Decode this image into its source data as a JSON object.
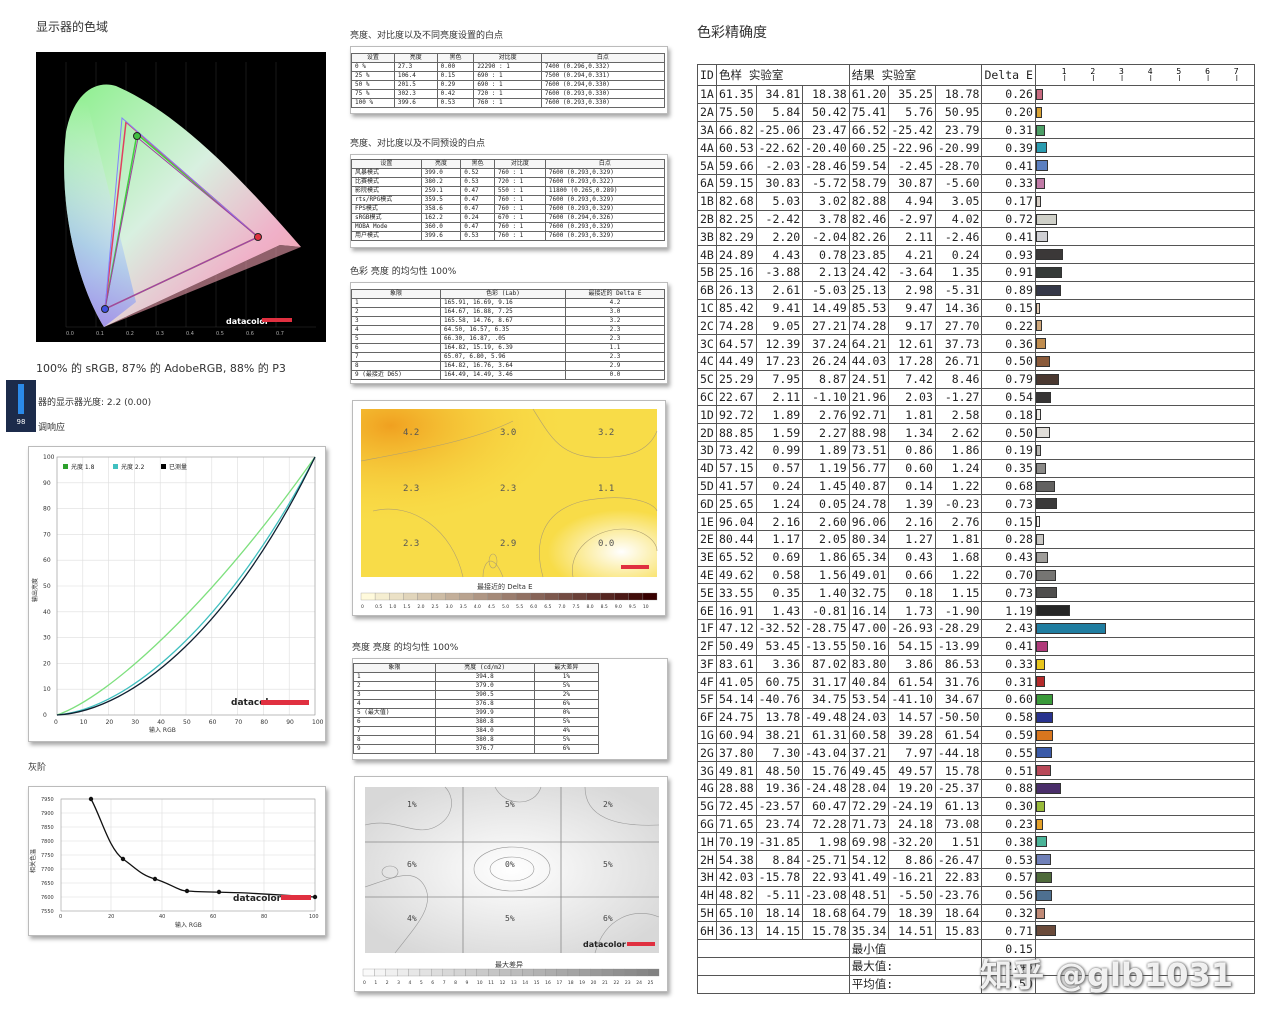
{
  "gamut": {
    "title": "显示器的色域",
    "caption": "100% 的 sRGB, 87% 的 AdobeRGB, 88% 的 P3",
    "logo": "datacolor"
  },
  "badge": {
    "value": "98"
  },
  "gamma_title": "显示器的显示器光度: 2.2 (0.00)",
  "gamma_title_visible": "器的显示器光度: 2.2 (0.00)",
  "response_title": "调响应",
  "gamma_chart": {
    "legend": [
      "光度 1.8",
      "光度 2.2",
      "已测量"
    ],
    "legend_colors": [
      "#2ca02c",
      "#40c0c0",
      "#000000"
    ],
    "xlabel": "输入 RGB",
    "ylabel": "输出亮度",
    "ticks": [
      "0",
      "10",
      "20",
      "30",
      "40",
      "50",
      "60",
      "70",
      "80",
      "90",
      "100"
    ],
    "logo": "datacolor"
  },
  "gray_title": "灰阶",
  "gray_chart": {
    "xlabel": "输入 RGB",
    "ylabel": "相关色温",
    "yticks": [
      "7950",
      "7900",
      "7850",
      "7800",
      "7750",
      "7700",
      "7650",
      "7600",
      "7550"
    ],
    "xticks": [
      "0",
      "20",
      "40",
      "60",
      "80",
      "100"
    ],
    "logo": "datacolor"
  },
  "table1": {
    "title": "亮度、对比度以及不同亮度设置的白点",
    "headers": [
      "设置",
      "亮度",
      "黑色",
      "对比度",
      "白点"
    ],
    "rows": [
      [
        "0 %",
        "27.3",
        "0.00",
        "22290 : 1",
        "7400 (0.296,0.332)"
      ],
      [
        "25 %",
        "106.4",
        "0.15",
        "690 : 1",
        "7500 (0.294,0.331)"
      ],
      [
        "50 %",
        "201.5",
        "0.29",
        "690 : 1",
        "7600 (0.294,0.330)"
      ],
      [
        "75 %",
        "302.3",
        "0.42",
        "720 : 1",
        "7600 (0.293,0.330)"
      ],
      [
        "100 %",
        "399.6",
        "0.53",
        "760 : 1",
        "7600 (0.293,0.330)"
      ]
    ]
  },
  "table2": {
    "title": "亮度、对比度以及不同预设的白点",
    "headers": [
      "设置",
      "亮度",
      "黑色",
      "对比度",
      "白点"
    ],
    "rows": [
      [
        "风暴模式",
        "399.0",
        "0.52",
        "760 : 1",
        "7600 (0.293,0.329)"
      ],
      [
        "比赛模式",
        "380.2",
        "0.53",
        "720 : 1",
        "7600 (0.293,0.322)"
      ],
      [
        "影院模式",
        "259.1",
        "0.47",
        "550 : 1",
        "11800 (0.265,0.289)"
      ],
      [
        "rts/RPG模式",
        "359.5",
        "0.47",
        "760 : 1",
        "7600 (0.293,0.329)"
      ],
      [
        "FPS模式",
        "358.6",
        "0.47",
        "760 : 1",
        "7600 (0.293,0.329)"
      ],
      [
        "sRGB模式",
        "162.2",
        "0.24",
        "670 : 1",
        "7600 (0.294,0.326)"
      ],
      [
        "MOBA Mode",
        "360.0",
        "0.47",
        "760 : 1",
        "7600 (0.293,0.329)"
      ],
      [
        "用户模式",
        "399.6",
        "0.53",
        "760 : 1",
        "7600 (0.293,0.329)"
      ]
    ]
  },
  "table3": {
    "title": "色彩 亮度 的均匀性 100%",
    "headers": [
      "象限",
      "色彩 (Lab)",
      "最接近的 Delta E"
    ],
    "rows": [
      [
        "1",
        "165.91,  16.69,  9.16",
        "4.2"
      ],
      [
        "2",
        "164.67,  16.88,  7.25",
        "3.0"
      ],
      [
        "3",
        "165.58,  14.76,  8.67",
        "3.2"
      ],
      [
        "4",
        "64.50,  16.57,  6.35",
        "2.3"
      ],
      [
        "5",
        "66.30,  16.87,  .05",
        "2.3"
      ],
      [
        "6",
        "164.82,  15.19,  6.39",
        "1.1"
      ],
      [
        "7",
        "65.07,  6.80,  5.96",
        "2.3"
      ],
      [
        "8",
        "164.82,  16.76,  3.64",
        "2.9"
      ],
      [
        "9 (最接近 D65)",
        "164.49,  14.49,  3.46",
        "0.0"
      ]
    ]
  },
  "heatmap1": {
    "labels": [
      "4.2",
      "3.0",
      "3.2",
      "2.3",
      "2.3",
      "1.1",
      "2.3",
      "2.9",
      "0.0"
    ],
    "caption": "最接近的 Delta E",
    "scale": [
      "0",
      "0.5",
      "1.0",
      "1.5",
      "2.0",
      "2.5",
      "3.0",
      "3.5",
      "4.0",
      "4.5",
      "5.0",
      "5.5",
      "6.0",
      "6.5",
      "7.0",
      "7.5",
      "8.0",
      "8.5",
      "9.0",
      "9.5",
      "10"
    ]
  },
  "table4": {
    "title": "亮度 亮度 的均匀性 100%",
    "headers": [
      "象限",
      "亮度 (cd/m2)",
      "最大差异"
    ],
    "rows": [
      [
        "1",
        "394.8",
        "1%"
      ],
      [
        "2",
        "379.0",
        "5%"
      ],
      [
        "3",
        "390.5",
        "2%"
      ],
      [
        "4",
        "376.8",
        "6%"
      ],
      [
        "5 (最大值)",
        "399.9",
        "0%"
      ],
      [
        "6",
        "380.8",
        "5%"
      ],
      [
        "7",
        "384.0",
        "4%"
      ],
      [
        "8",
        "380.8",
        "5%"
      ],
      [
        "9",
        "376.7",
        "6%"
      ]
    ]
  },
  "heatmap2": {
    "labels": [
      "1%",
      "5%",
      "2%",
      "6%",
      "0%",
      "5%",
      "4%",
      "5%",
      "6%"
    ],
    "caption": "最大差异",
    "scale": [
      "0",
      "1",
      "2",
      "3",
      "4",
      "5",
      "6",
      "7",
      "8",
      "9",
      "10",
      "11",
      "12",
      "13",
      "14",
      "15",
      "16",
      "17",
      "18",
      "19",
      "20",
      "21",
      "22",
      "23",
      "24",
      "25"
    ],
    "logo": "datacolor"
  },
  "accuracy": {
    "title": "色彩精确度",
    "headers": [
      "ID",
      "色样 实验室",
      "结果 实验室",
      "Delta E"
    ],
    "axis": [
      "1",
      "2",
      "3",
      "4",
      "5",
      "6",
      "7"
    ],
    "rows": [
      [
        "1A",
        "61.35",
        "34.81",
        "18.38",
        "61.20",
        "35.25",
        "18.78",
        "0.26",
        "#c86a80"
      ],
      [
        "2A",
        "75.50",
        "5.84",
        "50.42",
        "75.41",
        "5.76",
        "50.95",
        "0.20",
        "#d9a233"
      ],
      [
        "3A",
        "66.82",
        "-25.06",
        "23.47",
        "66.52",
        "-25.42",
        "23.79",
        "0.31",
        "#4c9e66"
      ],
      [
        "4A",
        "60.53",
        "-22.62",
        "-20.40",
        "60.25",
        "-22.96",
        "-20.99",
        "0.39",
        "#2a9cb0"
      ],
      [
        "5A",
        "59.66",
        "-2.03",
        "-28.46",
        "59.54",
        "-2.45",
        "-28.70",
        "0.41",
        "#5b7fc0"
      ],
      [
        "6A",
        "59.15",
        "30.83",
        "-5.72",
        "58.79",
        "30.87",
        "-5.60",
        "0.33",
        "#c07aa6"
      ],
      [
        "1B",
        "82.68",
        "5.03",
        "3.02",
        "82.88",
        "4.94",
        "3.05",
        "0.17",
        "#d8cfc6"
      ],
      [
        "2B",
        "82.25",
        "-2.42",
        "3.78",
        "82.46",
        "-2.97",
        "4.02",
        "0.72",
        "#cfd0c8"
      ],
      [
        "3B",
        "82.29",
        "2.20",
        "-2.04",
        "82.26",
        "2.11",
        "-2.46",
        "0.41",
        "#d0d0d4"
      ],
      [
        "4B",
        "24.89",
        "4.43",
        "0.78",
        "23.85",
        "4.21",
        "0.24",
        "0.93",
        "#3b3838"
      ],
      [
        "5B",
        "25.16",
        "-3.88",
        "2.13",
        "24.42",
        "-3.64",
        "1.35",
        "0.91",
        "#353a38"
      ],
      [
        "6B",
        "26.13",
        "2.61",
        "-5.03",
        "25.13",
        "2.98",
        "-5.31",
        "0.89",
        "#353848"
      ],
      [
        "1C",
        "85.42",
        "9.41",
        "14.49",
        "85.53",
        "9.47",
        "14.36",
        "0.15",
        "#e6ccb4"
      ],
      [
        "2C",
        "74.28",
        "9.05",
        "27.21",
        "74.28",
        "9.17",
        "27.70",
        "0.22",
        "#cfa77a"
      ],
      [
        "3C",
        "64.57",
        "12.39",
        "37.24",
        "64.21",
        "12.61",
        "37.73",
        "0.36",
        "#c08d4f"
      ],
      [
        "4C",
        "44.49",
        "17.23",
        "26.24",
        "44.03",
        "17.28",
        "26.71",
        "0.50",
        "#8a5a3a"
      ],
      [
        "5C",
        "25.29",
        "7.95",
        "8.87",
        "24.51",
        "7.42",
        "8.46",
        "0.79",
        "#4a3830"
      ],
      [
        "6C",
        "22.67",
        "2.11",
        "-1.10",
        "21.96",
        "2.03",
        "-1.27",
        "0.54",
        "#363434"
      ],
      [
        "1D",
        "92.72",
        "1.89",
        "2.76",
        "92.71",
        "1.81",
        "2.58",
        "0.18",
        "#ece9e3"
      ],
      [
        "2D",
        "88.85",
        "1.59",
        "2.27",
        "88.98",
        "1.34",
        "2.62",
        "0.50",
        "#e0ddd8"
      ],
      [
        "3D",
        "73.42",
        "0.99",
        "1.89",
        "73.51",
        "0.86",
        "1.86",
        "0.19",
        "#b6b4b0"
      ],
      [
        "4D",
        "57.15",
        "0.57",
        "1.19",
        "56.77",
        "0.60",
        "1.24",
        "0.35",
        "#8a8987"
      ],
      [
        "5D",
        "41.57",
        "0.24",
        "1.45",
        "40.87",
        "0.14",
        "1.22",
        "0.68",
        "#626160"
      ],
      [
        "6D",
        "25.65",
        "1.24",
        "0.05",
        "24.78",
        "1.39",
        "-0.23",
        "0.73",
        "#3b3a3a"
      ],
      [
        "1E",
        "96.04",
        "2.16",
        "2.60",
        "96.06",
        "2.16",
        "2.76",
        "0.15",
        "#f5f2ee"
      ],
      [
        "2E",
        "80.44",
        "1.17",
        "2.05",
        "80.34",
        "1.27",
        "1.81",
        "0.28",
        "#c9c7c3"
      ],
      [
        "3E",
        "65.52",
        "0.69",
        "1.86",
        "65.34",
        "0.43",
        "1.68",
        "0.43",
        "#9f9d9a"
      ],
      [
        "4E",
        "49.62",
        "0.58",
        "1.56",
        "49.01",
        "0.66",
        "1.22",
        "0.70",
        "#767573"
      ],
      [
        "5E",
        "33.55",
        "0.35",
        "1.40",
        "32.75",
        "0.18",
        "1.15",
        "0.73",
        "#4f4e4d"
      ],
      [
        "6E",
        "16.91",
        "1.43",
        "-0.81",
        "16.14",
        "1.73",
        "-1.90",
        "1.19",
        "#262626"
      ],
      [
        "1F",
        "47.12",
        "-32.52",
        "-28.75",
        "47.00",
        "-26.93",
        "-28.29",
        "2.43",
        "#1f7da0"
      ],
      [
        "2F",
        "50.49",
        "53.45",
        "-13.55",
        "50.16",
        "54.15",
        "-13.99",
        "0.41",
        "#b03a7a"
      ],
      [
        "3F",
        "83.61",
        "3.36",
        "87.02",
        "83.80",
        "3.86",
        "86.53",
        "0.33",
        "#e8c51c"
      ],
      [
        "4F",
        "41.05",
        "60.75",
        "31.17",
        "40.84",
        "61.54",
        "31.76",
        "0.31",
        "#b52a2a"
      ],
      [
        "5F",
        "54.14",
        "-40.76",
        "34.75",
        "53.54",
        "-41.10",
        "34.67",
        "0.60",
        "#3a9a3a"
      ],
      [
        "6F",
        "24.75",
        "13.78",
        "-49.48",
        "24.03",
        "14.57",
        "-50.50",
        "0.58",
        "#28328e"
      ],
      [
        "1G",
        "60.94",
        "38.21",
        "61.31",
        "60.58",
        "39.28",
        "61.54",
        "0.59",
        "#d8761e"
      ],
      [
        "2G",
        "37.80",
        "7.30",
        "-43.04",
        "37.21",
        "7.97",
        "-44.18",
        "0.55",
        "#3a5aa8"
      ],
      [
        "3G",
        "49.81",
        "48.50",
        "15.76",
        "49.45",
        "49.57",
        "15.78",
        "0.51",
        "#b84858"
      ],
      [
        "4G",
        "28.88",
        "19.36",
        "-24.48",
        "28.04",
        "19.20",
        "-25.37",
        "0.88",
        "#4a2e6a"
      ],
      [
        "5G",
        "72.45",
        "-23.57",
        "60.47",
        "72.29",
        "-24.19",
        "61.13",
        "0.30",
        "#98ba3a"
      ],
      [
        "6G",
        "71.65",
        "23.74",
        "72.28",
        "71.73",
        "24.18",
        "73.08",
        "0.23",
        "#e4a028"
      ],
      [
        "1H",
        "70.19",
        "-31.85",
        "1.98",
        "69.98",
        "-32.20",
        "1.51",
        "0.38",
        "#4ab498"
      ],
      [
        "2H",
        "54.38",
        "8.84",
        "-25.71",
        "54.12",
        "8.86",
        "-26.47",
        "0.53",
        "#7080b8"
      ],
      [
        "3H",
        "42.03",
        "-15.78",
        "22.93",
        "41.49",
        "-16.21",
        "22.83",
        "0.57",
        "#4e6a3a"
      ],
      [
        "4H",
        "48.82",
        "-5.11",
        "-23.08",
        "48.51",
        "-5.50",
        "-23.76",
        "0.56",
        "#4e7090"
      ],
      [
        "5H",
        "65.10",
        "18.14",
        "18.68",
        "64.79",
        "18.39",
        "18.64",
        "0.32",
        "#c08a76"
      ],
      [
        "6H",
        "36.13",
        "14.15",
        "15.78",
        "35.34",
        "14.51",
        "15.83",
        "0.71",
        "#6a4a3a"
      ]
    ],
    "summary": [
      {
        "label": "最小值",
        "value": "0.15"
      },
      {
        "label": "最大值:",
        "value": "2.43"
      },
      {
        "label": "平均值:",
        "value": "0.50"
      }
    ]
  },
  "watermark": "知乎 @glb1031"
}
